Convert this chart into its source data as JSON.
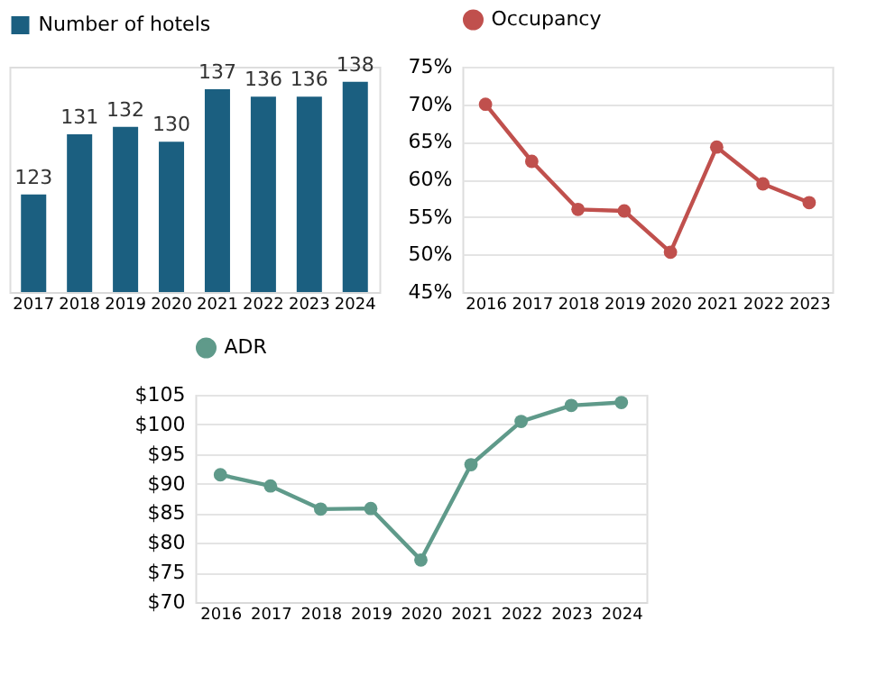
{
  "chart_data": [
    {
      "type": "bar",
      "categories": [
        "2017",
        "2018",
        "2019",
        "2020",
        "2021",
        "2022",
        "2023",
        "2024"
      ],
      "series": [
        {
          "name": "Number of hotels",
          "color": "#1b5f80",
          "values": [
            123,
            131,
            132,
            130,
            137,
            136,
            136,
            138
          ]
        }
      ],
      "ylim": [
        110,
        140
      ],
      "data_labels": true,
      "grid": false,
      "legend": "top",
      "tick_labels": "x"
    },
    {
      "type": "line",
      "categories": [
        "2016",
        "2017",
        "2018",
        "2019",
        "2020",
        "2021",
        "2022",
        "2023"
      ],
      "series": [
        {
          "name": "Occupancy",
          "color": "#c0504d",
          "values": [
            70,
            62.4,
            56,
            55.8,
            50.3,
            64.3,
            59.4,
            56.9
          ]
        }
      ],
      "ylim": [
        45,
        75
      ],
      "yticks": [
        {
          "value": 45,
          "label": "45%"
        },
        {
          "value": 50,
          "label": "50%"
        },
        {
          "value": 55,
          "label": "55%"
        },
        {
          "value": 60,
          "label": "60%"
        },
        {
          "value": 65,
          "label": "65%"
        },
        {
          "value": 70,
          "label": "70%"
        },
        {
          "value": 75,
          "label": "75%"
        }
      ],
      "grid": "y",
      "legend": "top",
      "marker": "circle",
      "line_style": "solid"
    },
    {
      "type": "line",
      "categories": [
        "2016",
        "2017",
        "2018",
        "2019",
        "2020",
        "2021",
        "2022",
        "2023",
        "2024"
      ],
      "series": [
        {
          "name": "ADR",
          "color": "#5f9a8a",
          "values": [
            91.5,
            89.6,
            85.7,
            85.8,
            77.1,
            93.2,
            100.5,
            103.2,
            103.7
          ]
        }
      ],
      "ylim": [
        70,
        105
      ],
      "yticks": [
        {
          "value": 70,
          "label": "$70"
        },
        {
          "value": 75,
          "label": "$75"
        },
        {
          "value": 80,
          "label": "$80"
        },
        {
          "value": 85,
          "label": "$85"
        },
        {
          "value": 90,
          "label": "$90"
        },
        {
          "value": 95,
          "label": "$95"
        },
        {
          "value": 100,
          "label": "$100"
        },
        {
          "value": 105,
          "label": "$105"
        }
      ],
      "grid": "y",
      "legend": "top",
      "marker": "circle",
      "line_style": "solid"
    }
  ]
}
